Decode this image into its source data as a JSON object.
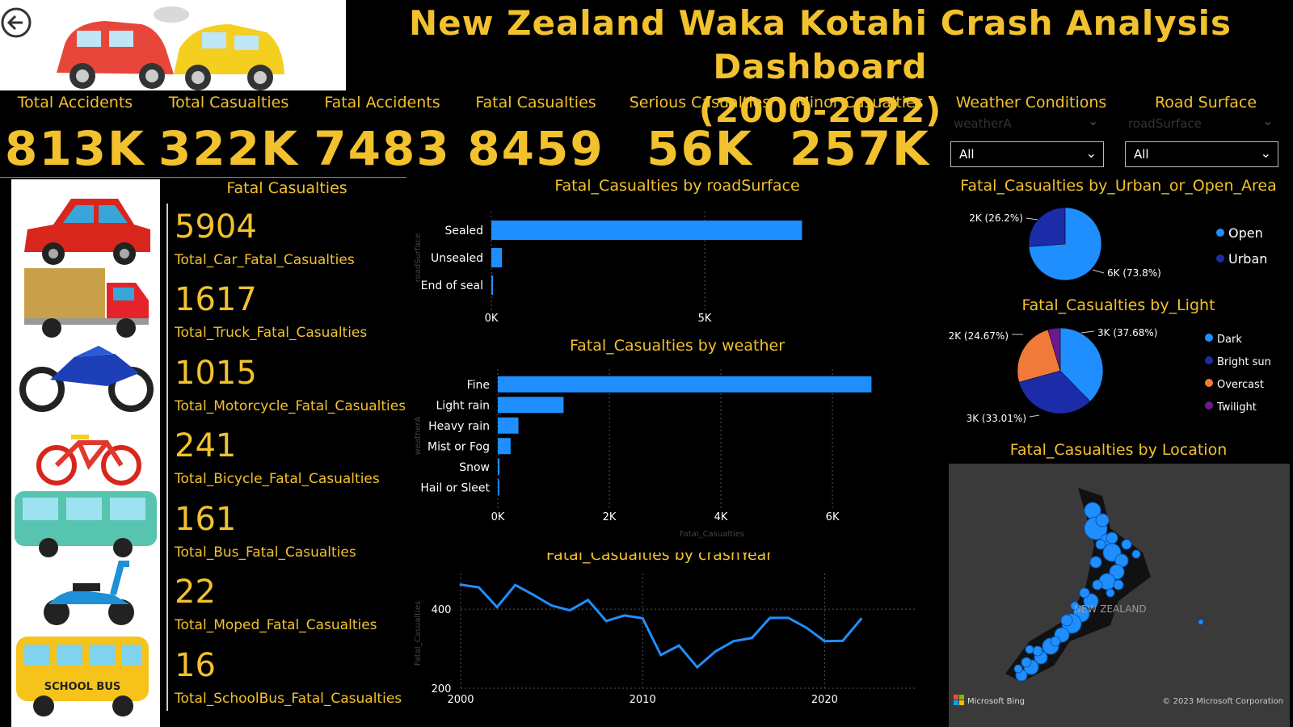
{
  "header": {
    "title_line1": "New Zealand Waka Kotahi Crash Analysis Dashboard",
    "title_line2": "(2000-2022)"
  },
  "kpis": [
    {
      "label": "Total Accidents",
      "value": "813K"
    },
    {
      "label": "Total Casualties",
      "value": "322K"
    },
    {
      "label": "Fatal Accidents",
      "value": "7483"
    },
    {
      "label": "Fatal Casualties",
      "value": "8459"
    },
    {
      "label": "Serious Casualties",
      "value": "56K"
    },
    {
      "label": "Minor Casualties",
      "value": "257K"
    }
  ],
  "filters": {
    "weather": {
      "label": "Weather Conditions",
      "field": "weatherA",
      "selected": "All"
    },
    "road": {
      "label": "Road Surface",
      "field": "roadSurface",
      "selected": "All"
    }
  },
  "fatal_panel": {
    "title": "Fatal Casualties",
    "stats": [
      {
        "value": "5904",
        "label": "Total_Car_Fatal_Casualties",
        "icon": "car-icon"
      },
      {
        "value": "1617",
        "label": "Total_Truck_Fatal_Casualties",
        "icon": "truck-icon"
      },
      {
        "value": "1015",
        "label": "Total_Motorcycle_Fatal_Casualties",
        "icon": "motorcycle-icon"
      },
      {
        "value": "241",
        "label": "Total_Bicycle_Fatal_Casualties",
        "icon": "bicycle-icon"
      },
      {
        "value": "161",
        "label": "Total_Bus_Fatal_Casualties",
        "icon": "bus-icon"
      },
      {
        "value": "22",
        "label": "Total_Moped_Fatal_Casualties",
        "icon": "moped-icon"
      },
      {
        "value": "16",
        "label": "Total_SchoolBus_Fatal_Casualties",
        "icon": "school-bus-icon"
      }
    ],
    "school_bus_text": "SCHOOL BUS"
  },
  "colors": {
    "gold": "#f2c12e",
    "bar": "#1f8fff",
    "open": "#1f8fff",
    "urban": "#1c2ca8",
    "dark": "#1f8fff",
    "bright_sun": "#1c2ca8",
    "overcast": "#f07a3a",
    "twilight": "#6b1a8f"
  },
  "chart_data": [
    {
      "type": "bar",
      "orientation": "horizontal",
      "title": "Fatal_Casualties by roadSurface",
      "ylabel": "roadSurface",
      "categories": [
        "Sealed",
        "Unsealed",
        "End of seal"
      ],
      "values": [
        7280,
        250,
        40
      ],
      "ticks": [
        {
          "v": 0,
          "t": "0K"
        },
        {
          "v": 5000,
          "t": "5K"
        }
      ],
      "xlim": [
        0,
        8900
      ]
    },
    {
      "type": "bar",
      "orientation": "horizontal",
      "title": "Fatal_Casualties by weather",
      "ylabel": "weatherA",
      "xlabel": "Fatal_Casualties",
      "categories": [
        "Fine",
        "Light rain",
        "Heavy rain",
        "Mist or Fog",
        "Snow",
        "Hail or Sleet"
      ],
      "values": [
        6700,
        1180,
        370,
        230,
        30,
        25
      ],
      "ticks": [
        {
          "v": 0,
          "t": "0K"
        },
        {
          "v": 2000,
          "t": "2K"
        },
        {
          "v": 4000,
          "t": "4K"
        },
        {
          "v": 6000,
          "t": "6K"
        }
      ],
      "xlim": [
        0,
        7100
      ]
    },
    {
      "type": "line",
      "title": "Fatal_Casualties by crashYear",
      "ylabel": "Fatal_Casualties",
      "x": [
        2000,
        2001,
        2002,
        2003,
        2004,
        2005,
        2006,
        2007,
        2008,
        2009,
        2010,
        2011,
        2012,
        2013,
        2014,
        2015,
        2016,
        2017,
        2018,
        2019,
        2020,
        2021,
        2022
      ],
      "y": [
        462,
        455,
        405,
        461,
        436,
        409,
        397,
        423,
        370,
        384,
        377,
        284,
        308,
        253,
        293,
        319,
        327,
        378,
        378,
        353,
        319,
        320,
        375
      ],
      "xticks": [
        {
          "v": 2000,
          "t": "2000"
        },
        {
          "v": 2010,
          "t": "2010"
        },
        {
          "v": 2020,
          "t": "2020"
        }
      ],
      "yticks": [
        {
          "v": 200,
          "t": "200"
        },
        {
          "v": 400,
          "t": "400"
        }
      ],
      "ylim": [
        200,
        490
      ],
      "xlim": [
        2000,
        2025
      ]
    },
    {
      "type": "pie",
      "title": "Fatal_Casualties by_Urban_or_Open_Area",
      "slices": [
        {
          "name": "Open",
          "value": 73.8,
          "label": "6K (73.8%)"
        },
        {
          "name": "Urban",
          "value": 26.2,
          "label": "2K (26.2%)"
        }
      ],
      "legend": "right"
    },
    {
      "type": "pie",
      "title": "Fatal_Casualties by_Light",
      "slices": [
        {
          "name": "Dark",
          "value": 37.68,
          "label": "3K (37.68%)"
        },
        {
          "name": "Bright sun",
          "value": 33.01,
          "label": "3K (33.01%)"
        },
        {
          "name": "Overcast",
          "value": 24.67,
          "label": "2K (24.67%)"
        },
        {
          "name": "Twilight",
          "value": 4.64,
          "label": ""
        }
      ],
      "legend": "right"
    }
  ],
  "map": {
    "title": "Fatal_Casualties by Location",
    "country_label": "NEW ZEALAND",
    "brand": "Microsoft Bing",
    "copyright": "© 2023 Microsoft Corporation"
  }
}
